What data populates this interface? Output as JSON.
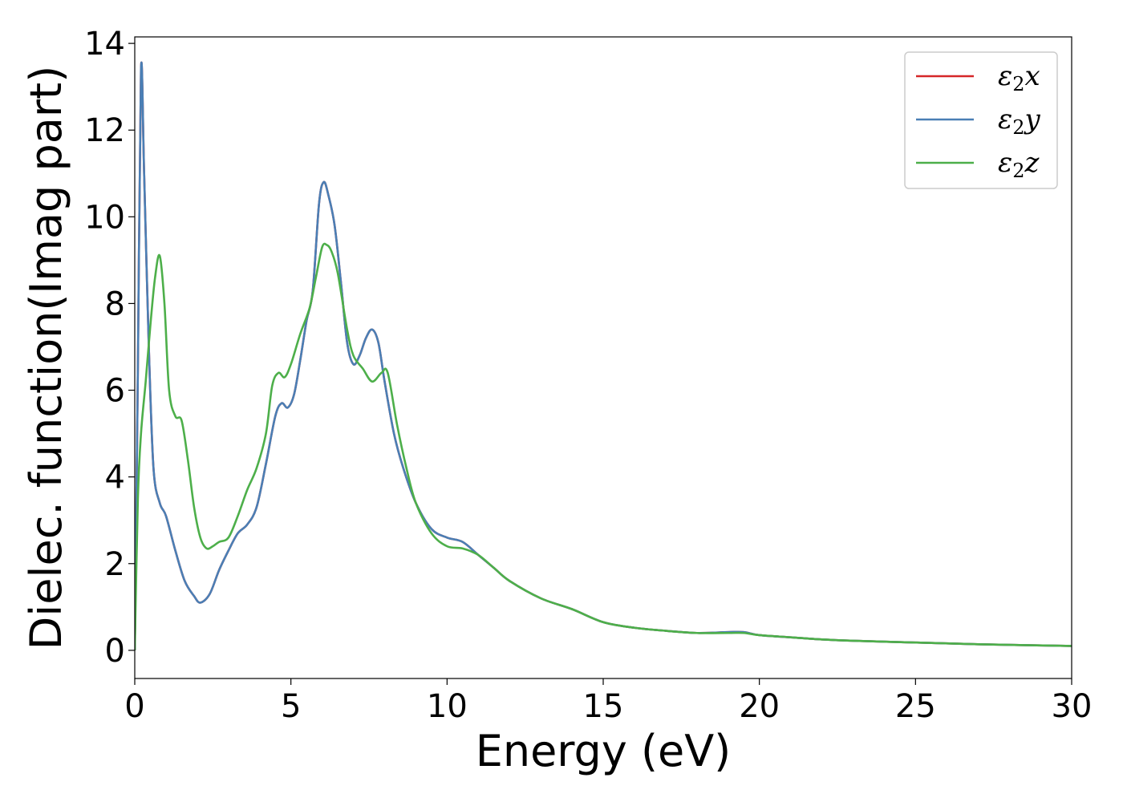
{
  "chart_data": {
    "type": "line",
    "xlabel": "Energy (eV)",
    "ylabel": "Dielec. function(Imag part)",
    "xlim": [
      0,
      30
    ],
    "ylim": [
      -0.65,
      14.15
    ],
    "xticks": [
      0,
      5,
      10,
      15,
      20,
      25,
      30
    ],
    "yticks": [
      0,
      2,
      4,
      6,
      8,
      10,
      12,
      14
    ],
    "grid": false,
    "legend_position": "top-right",
    "series": [
      {
        "name": "ε₂x",
        "legend_base": "ε",
        "legend_sub": "2",
        "legend_tail": "x",
        "color": "#d62728",
        "x": [
          0,
          0.1,
          0.2,
          0.3,
          0.45,
          0.6,
          0.8,
          1.0,
          1.3,
          1.6,
          1.9,
          2.1,
          2.4,
          2.7,
          3.0,
          3.3,
          3.6,
          3.9,
          4.2,
          4.5,
          4.7,
          4.9,
          5.1,
          5.3,
          5.5,
          5.7,
          5.9,
          6.05,
          6.2,
          6.4,
          6.6,
          6.8,
          7.0,
          7.2,
          7.4,
          7.6,
          7.8,
          8.0,
          8.3,
          8.6,
          9.0,
          9.5,
          10.0,
          10.5,
          11.0,
          11.5,
          12.0,
          13.0,
          14.0,
          15.0,
          16.0,
          17.0,
          18.0,
          19.0,
          19.5,
          20.0,
          21.0,
          22.0,
          23.0,
          25.0,
          27.0,
          30.0
        ],
        "values": [
          0,
          6.5,
          13.4,
          11.0,
          7.0,
          4.2,
          3.4,
          3.1,
          2.3,
          1.6,
          1.25,
          1.1,
          1.3,
          1.85,
          2.3,
          2.7,
          2.9,
          3.3,
          4.3,
          5.4,
          5.7,
          5.6,
          5.9,
          6.7,
          7.6,
          8.3,
          10.3,
          10.8,
          10.5,
          9.8,
          8.5,
          7.1,
          6.6,
          6.8,
          7.2,
          7.4,
          7.1,
          6.2,
          5.0,
          4.2,
          3.4,
          2.8,
          2.6,
          2.5,
          2.2,
          1.9,
          1.6,
          1.2,
          0.95,
          0.65,
          0.52,
          0.45,
          0.4,
          0.42,
          0.42,
          0.35,
          0.3,
          0.25,
          0.22,
          0.18,
          0.14,
          0.1
        ]
      },
      {
        "name": "ε₂y",
        "legend_base": "ε",
        "legend_sub": "2",
        "legend_tail": "y",
        "color": "#4a7fb5",
        "x": [
          0,
          0.1,
          0.2,
          0.3,
          0.45,
          0.6,
          0.8,
          1.0,
          1.3,
          1.6,
          1.9,
          2.1,
          2.4,
          2.7,
          3.0,
          3.3,
          3.6,
          3.9,
          4.2,
          4.5,
          4.7,
          4.9,
          5.1,
          5.3,
          5.5,
          5.7,
          5.9,
          6.05,
          6.2,
          6.4,
          6.6,
          6.8,
          7.0,
          7.2,
          7.4,
          7.6,
          7.8,
          8.0,
          8.3,
          8.6,
          9.0,
          9.5,
          10.0,
          10.5,
          11.0,
          11.5,
          12.0,
          13.0,
          14.0,
          15.0,
          16.0,
          17.0,
          18.0,
          19.0,
          19.5,
          20.0,
          21.0,
          22.0,
          23.0,
          25.0,
          27.0,
          30.0
        ],
        "values": [
          0,
          6.5,
          13.4,
          11.0,
          7.0,
          4.2,
          3.4,
          3.1,
          2.3,
          1.6,
          1.25,
          1.1,
          1.3,
          1.85,
          2.3,
          2.7,
          2.9,
          3.3,
          4.3,
          5.4,
          5.7,
          5.6,
          5.9,
          6.7,
          7.6,
          8.3,
          10.3,
          10.8,
          10.5,
          9.8,
          8.5,
          7.1,
          6.6,
          6.8,
          7.2,
          7.4,
          7.1,
          6.2,
          5.0,
          4.2,
          3.4,
          2.8,
          2.6,
          2.5,
          2.2,
          1.9,
          1.6,
          1.2,
          0.95,
          0.65,
          0.52,
          0.45,
          0.4,
          0.42,
          0.42,
          0.35,
          0.3,
          0.25,
          0.22,
          0.18,
          0.14,
          0.1
        ]
      },
      {
        "name": "ε₂z",
        "legend_base": "ε",
        "legend_sub": "2",
        "legend_tail": "z",
        "color": "#4daf4a",
        "x": [
          0,
          0.1,
          0.2,
          0.35,
          0.5,
          0.65,
          0.8,
          0.95,
          1.1,
          1.3,
          1.5,
          1.7,
          1.9,
          2.1,
          2.3,
          2.5,
          2.7,
          3.0,
          3.3,
          3.6,
          3.9,
          4.2,
          4.4,
          4.6,
          4.8,
          5.0,
          5.3,
          5.6,
          5.8,
          6.0,
          6.15,
          6.3,
          6.5,
          6.8,
          7.0,
          7.3,
          7.6,
          7.9,
          8.1,
          8.4,
          8.7,
          9.0,
          9.5,
          10.0,
          10.5,
          11.0,
          11.5,
          12.0,
          13.0,
          14.0,
          15.0,
          16.0,
          17.0,
          18.0,
          19.0,
          19.5,
          20.0,
          21.0,
          22.0,
          23.0,
          25.0,
          27.0,
          30.0
        ],
        "values": [
          0,
          3.5,
          5.0,
          6.2,
          7.5,
          8.6,
          9.1,
          8.0,
          6.0,
          5.4,
          5.3,
          4.4,
          3.3,
          2.6,
          2.35,
          2.4,
          2.5,
          2.6,
          3.1,
          3.7,
          4.2,
          5.0,
          6.1,
          6.4,
          6.3,
          6.6,
          7.3,
          7.9,
          8.6,
          9.3,
          9.35,
          9.2,
          8.7,
          7.4,
          6.8,
          6.5,
          6.2,
          6.4,
          6.4,
          5.2,
          4.2,
          3.4,
          2.7,
          2.4,
          2.35,
          2.2,
          1.9,
          1.6,
          1.2,
          0.95,
          0.65,
          0.52,
          0.45,
          0.4,
          0.4,
          0.4,
          0.35,
          0.3,
          0.25,
          0.22,
          0.18,
          0.14,
          0.1
        ]
      }
    ]
  }
}
